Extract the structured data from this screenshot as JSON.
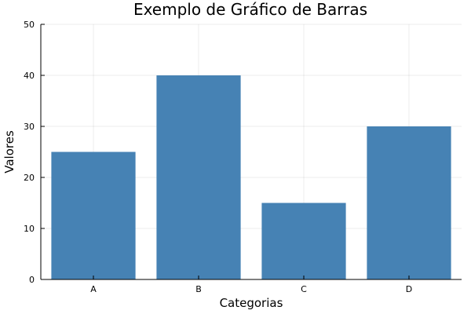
{
  "chart_data": {
    "type": "bar",
    "title": "Exemplo de Gráfico de Barras",
    "xlabel": "Categorias",
    "ylabel": "Valores",
    "categories": [
      "A",
      "B",
      "C",
      "D"
    ],
    "values": [
      25,
      40,
      15,
      30
    ],
    "ylim": [
      0,
      50
    ],
    "yticks": [
      0,
      10,
      20,
      30,
      40,
      50
    ],
    "grid": true,
    "legend": false,
    "bar_color": "#4682b4"
  }
}
